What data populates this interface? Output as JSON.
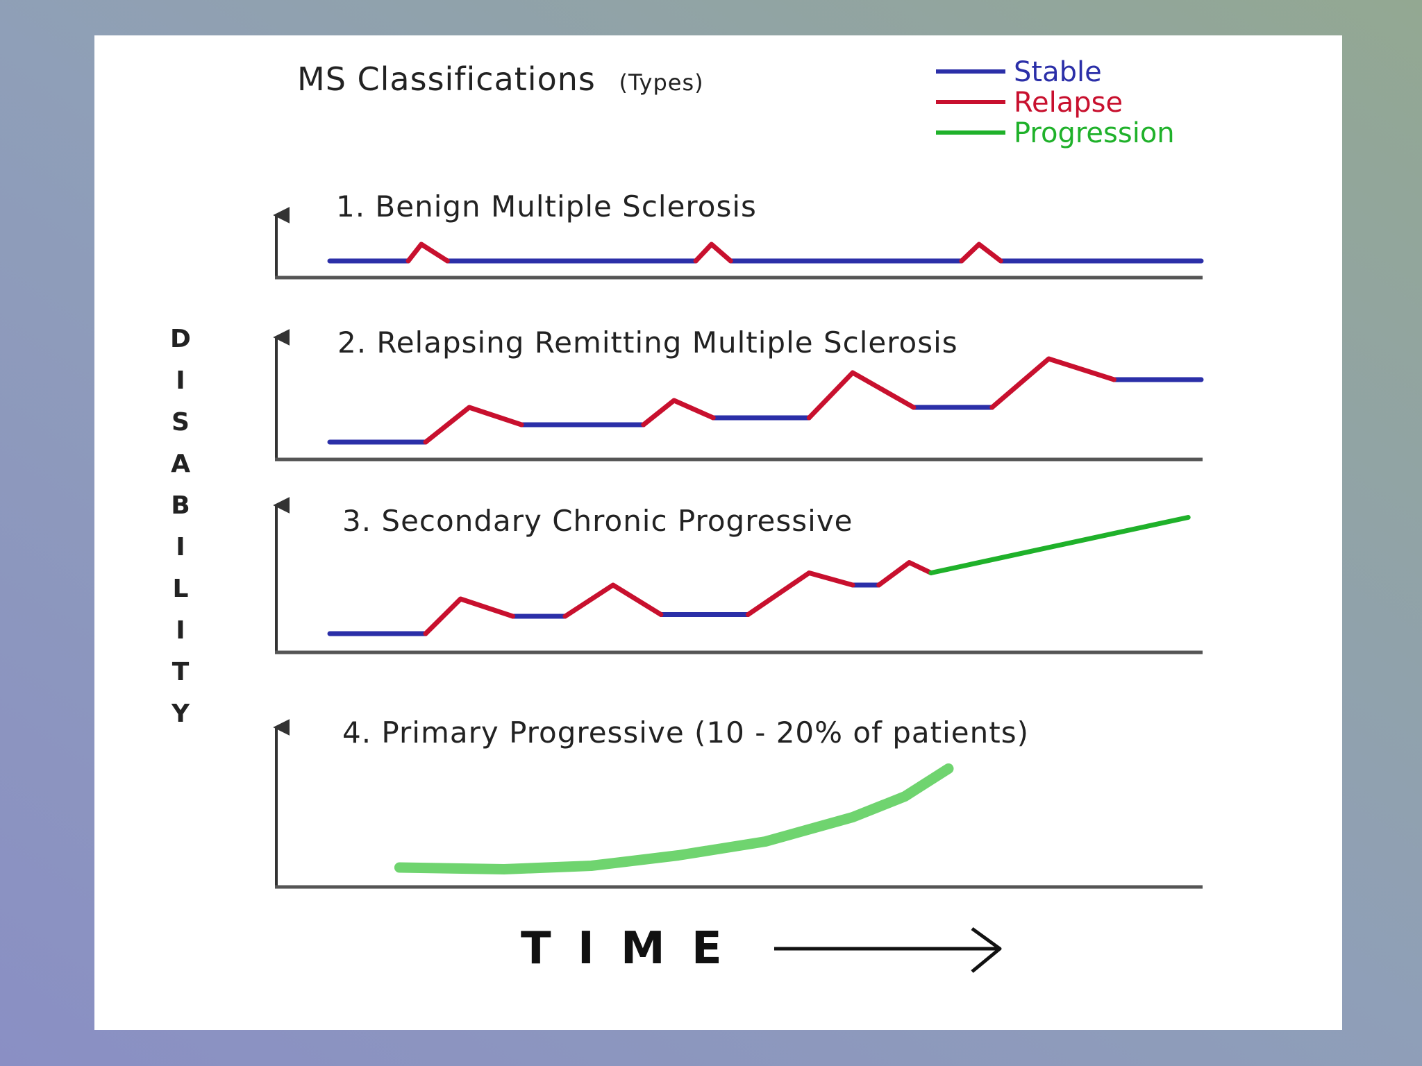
{
  "title": "MS Classifications",
  "title_suffix": "(Types)",
  "legend": [
    {
      "label": "Stable",
      "color": "#2b2fa8"
    },
    {
      "label": "Relapse",
      "color": "#c8102e"
    },
    {
      "label": "Progression",
      "color": "#1fb12a"
    }
  ],
  "y_axis_label": "DISABILITY",
  "x_axis_label": "T I M E",
  "chart_data": [
    {
      "type": "line",
      "title": "1. Benign Multiple Sclerosis",
      "xlim": [
        0,
        100
      ],
      "ylim": [
        0,
        10
      ],
      "series": [
        {
          "name": "Stable",
          "color": "#2b2fa8",
          "segments": [
            [
              [
                0,
                1.0
              ],
              [
                9,
                1.0
              ]
            ],
            [
              [
                13.5,
                1.0
              ],
              [
                42,
                1.0
              ]
            ],
            [
              [
                46,
                1.0
              ],
              [
                72.5,
                1.0
              ]
            ],
            [
              [
                77,
                1.0
              ],
              [
                100,
                1.0
              ]
            ]
          ]
        },
        {
          "name": "Relapse",
          "color": "#c8102e",
          "segments": [
            [
              [
                9,
                1.0
              ],
              [
                10.5,
                2.2
              ],
              [
                13.5,
                1.0
              ]
            ],
            [
              [
                42,
                1.0
              ],
              [
                43.8,
                2.2
              ],
              [
                46,
                1.0
              ]
            ],
            [
              [
                72.5,
                1.0
              ],
              [
                74.5,
                2.2
              ],
              [
                77,
                1.0
              ]
            ]
          ]
        }
      ]
    },
    {
      "type": "line",
      "title": "2. Relapsing Remitting Multiple Sclerosis",
      "xlim": [
        0,
        100
      ],
      "ylim": [
        0,
        10
      ],
      "series": [
        {
          "name": "Stable",
          "color": "#2b2fa8",
          "segments": [
            [
              [
                0,
                1.0
              ],
              [
                11,
                1.0
              ]
            ],
            [
              [
                22,
                2.0
              ],
              [
                36,
                2.0
              ]
            ],
            [
              [
                44,
                2.4
              ],
              [
                55,
                2.4
              ]
            ],
            [
              [
                67,
                3.0
              ],
              [
                76,
                3.0
              ]
            ],
            [
              [
                90,
                4.6
              ],
              [
                100,
                4.6
              ]
            ]
          ]
        },
        {
          "name": "Relapse",
          "color": "#c8102e",
          "segments": [
            [
              [
                11,
                1.0
              ],
              [
                16,
                3.0
              ],
              [
                22,
                2.0
              ]
            ],
            [
              [
                36,
                2.0
              ],
              [
                39.5,
                3.4
              ],
              [
                44,
                2.4
              ]
            ],
            [
              [
                55,
                2.4
              ],
              [
                60,
                5.0
              ],
              [
                67,
                3.0
              ]
            ],
            [
              [
                76,
                3.0
              ],
              [
                82.5,
                5.8
              ],
              [
                90,
                4.6
              ]
            ]
          ]
        }
      ]
    },
    {
      "type": "line",
      "title": "3. Secondary Chronic Progressive",
      "xlim": [
        0,
        100
      ],
      "ylim": [
        0,
        10
      ],
      "series": [
        {
          "name": "Stable",
          "color": "#2b2fa8",
          "segments": [
            [
              [
                0,
                1.0
              ],
              [
                11,
                1.0
              ]
            ],
            [
              [
                21,
                2.0
              ],
              [
                27,
                2.0
              ]
            ],
            [
              [
                38,
                2.1
              ],
              [
                48,
                2.1
              ]
            ],
            [
              [
                60,
                3.8
              ],
              [
                63,
                3.8
              ]
            ]
          ]
        },
        {
          "name": "Relapse",
          "color": "#c8102e",
          "segments": [
            [
              [
                11,
                1.0
              ],
              [
                15,
                3.0
              ],
              [
                21,
                2.0
              ]
            ],
            [
              [
                27,
                2.0
              ],
              [
                32.5,
                3.8
              ],
              [
                38,
                2.1
              ]
            ],
            [
              [
                48,
                2.1
              ],
              [
                55,
                4.5
              ],
              [
                60,
                3.8
              ]
            ],
            [
              [
                63,
                3.8
              ],
              [
                66.5,
                5.1
              ],
              [
                69,
                4.5
              ]
            ]
          ]
        },
        {
          "name": "Progression",
          "color": "#1fb12a",
          "segments": [
            [
              [
                69,
                4.5
              ],
              [
                98.5,
                7.7
              ]
            ]
          ]
        }
      ]
    },
    {
      "type": "line",
      "title": "4. Primary Progressive (10 - 20% of patients)",
      "xlim": [
        0,
        100
      ],
      "ylim": [
        0,
        10
      ],
      "series": [
        {
          "name": "Progression",
          "color": "#6fd46f",
          "segments": [
            [
              [
                8,
                1.0
              ],
              [
                20,
                0.9
              ],
              [
                30,
                1.1
              ],
              [
                40,
                1.7
              ],
              [
                50,
                2.5
              ],
              [
                60,
                3.9
              ],
              [
                66,
                5.1
              ],
              [
                71,
                6.7
              ]
            ]
          ]
        }
      ]
    }
  ]
}
